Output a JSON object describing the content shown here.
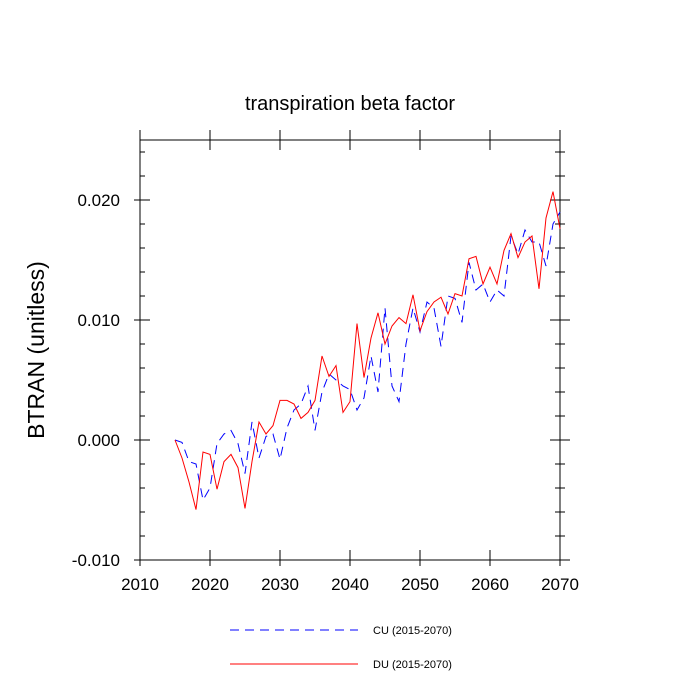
{
  "chart_data": {
    "type": "line",
    "title": "transpiration beta factor",
    "xlabel": "",
    "ylabel": "BTRAN  (unitless)",
    "xlim": [
      2010,
      2070
    ],
    "ylim": [
      -0.01,
      0.025
    ],
    "xticks": [
      {
        "value": 2010,
        "label": "2010"
      },
      {
        "value": 2020,
        "label": "2020"
      },
      {
        "value": 2030,
        "label": "2030"
      },
      {
        "value": 2040,
        "label": "2040"
      },
      {
        "value": 2050,
        "label": "2050"
      },
      {
        "value": 2060,
        "label": "2060"
      },
      {
        "value": 2070,
        "label": "2070"
      }
    ],
    "yticks": [
      {
        "value": -0.01,
        "label": "-0.010"
      },
      {
        "value": 0.0,
        "label": "0.000"
      },
      {
        "value": 0.01,
        "label": "0.010"
      },
      {
        "value": 0.02,
        "label": "0.020"
      }
    ],
    "grid": false,
    "legend_position": "bottom",
    "x": [
      2015,
      2016,
      2017,
      2018,
      2019,
      2020,
      2021,
      2022,
      2023,
      2024,
      2025,
      2026,
      2027,
      2028,
      2029,
      2030,
      2031,
      2032,
      2033,
      2034,
      2035,
      2036,
      2037,
      2038,
      2039,
      2040,
      2041,
      2042,
      2043,
      2044,
      2045,
      2046,
      2047,
      2048,
      2049,
      2050,
      2051,
      2052,
      2053,
      2054,
      2055,
      2056,
      2057,
      2058,
      2059,
      2060,
      2061,
      2062,
      2063,
      2064,
      2065,
      2066,
      2067,
      2068,
      2069,
      2070
    ],
    "series": [
      {
        "name": "CU (2015-2070)",
        "color": "#0000ff",
        "dash": "dashed",
        "values": [
          0.0,
          -0.0002,
          -0.0018,
          -0.002,
          -0.005,
          -0.004,
          -0.0003,
          0.0005,
          0.0008,
          -0.0003,
          -0.0028,
          0.0015,
          -0.0015,
          0.0003,
          0.0005,
          -0.0016,
          0.001,
          0.0025,
          0.003,
          0.0045,
          0.0008,
          0.004,
          0.0055,
          0.005,
          0.0045,
          0.0042,
          0.0025,
          0.0035,
          0.007,
          0.004,
          0.011,
          0.0045,
          0.0032,
          0.008,
          0.011,
          0.009,
          0.0115,
          0.011,
          0.0078,
          0.012,
          0.0118,
          0.0098,
          0.0148,
          0.0125,
          0.013,
          0.0115,
          0.0125,
          0.012,
          0.017,
          0.0155,
          0.0175,
          0.0165,
          0.0165,
          0.0145,
          0.018,
          0.019
        ]
      },
      {
        "name": "DU (2015-2070)",
        "color": "#ff0000",
        "dash": "solid",
        "values": [
          0.0,
          -0.0015,
          -0.0035,
          -0.0058,
          -0.001,
          -0.0012,
          -0.0041,
          -0.0018,
          -0.0012,
          -0.0023,
          -0.0057,
          -0.0018,
          0.0015,
          0.0005,
          0.0012,
          0.0033,
          0.0033,
          0.003,
          0.0018,
          0.0023,
          0.0033,
          0.007,
          0.0053,
          0.0062,
          0.0023,
          0.0032,
          0.0097,
          0.0052,
          0.0085,
          0.0106,
          0.008,
          0.0095,
          0.0102,
          0.0097,
          0.0121,
          0.0091,
          0.0107,
          0.0115,
          0.0119,
          0.0105,
          0.0122,
          0.012,
          0.0151,
          0.0153,
          0.013,
          0.0144,
          0.013,
          0.0158,
          0.0172,
          0.0152,
          0.0165,
          0.017,
          0.0126,
          0.0185,
          0.0207,
          0.0176
        ]
      }
    ]
  }
}
